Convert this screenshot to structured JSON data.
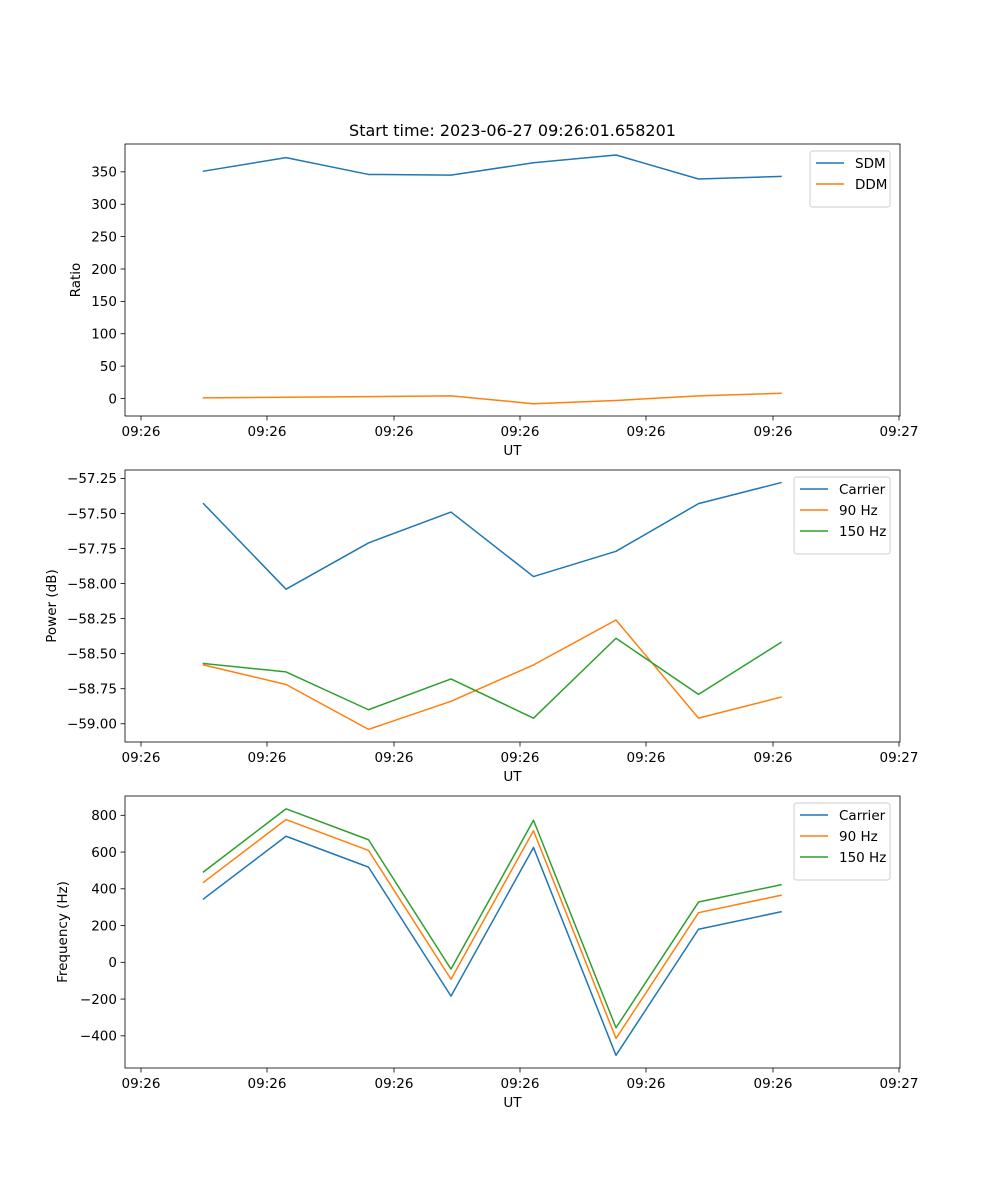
{
  "chart_data": [
    {
      "type": "line",
      "title": "Start time: 2023-06-27 09:26:01.658201",
      "xlabel": "UT",
      "ylabel": "Ratio",
      "xticks": [
        "09:26",
        "09:26",
        "09:26",
        "09:26",
        "09:26",
        "09:26",
        "09:27"
      ],
      "yticks": [
        0,
        50,
        100,
        150,
        200,
        250,
        300,
        350
      ],
      "ylim": [
        -27,
        393
      ],
      "legend": "top-right",
      "grid": false,
      "series": [
        {
          "name": "SDM",
          "color": "#1f77b4",
          "values": [
            351,
            372,
            346,
            345,
            364,
            376,
            339,
            343
          ]
        },
        {
          "name": "DDM",
          "color": "#ff7f0e",
          "values": [
            1,
            2,
            3,
            4,
            -8,
            -3,
            4,
            8
          ]
        }
      ]
    },
    {
      "type": "line",
      "title": "",
      "xlabel": "UT",
      "ylabel": "Power (dB)",
      "xticks": [
        "09:26",
        "09:26",
        "09:26",
        "09:26",
        "09:26",
        "09:26",
        "09:27"
      ],
      "yticks": [
        "−59.00",
        "−58.75",
        "−58.50",
        "−58.25",
        "−58.00",
        "−57.75",
        "−57.50",
        "−57.25"
      ],
      "ylim": [
        -59.13,
        -57.19
      ],
      "legend": "top-right",
      "grid": false,
      "series": [
        {
          "name": "Carrier",
          "color": "#1f77b4",
          "values": [
            -57.43,
            -58.04,
            -57.71,
            -57.49,
            -57.95,
            -57.77,
            -57.43,
            -57.28
          ]
        },
        {
          "name": "90 Hz",
          "color": "#ff7f0e",
          "values": [
            -58.58,
            -58.72,
            -59.04,
            -58.84,
            -58.58,
            -58.26,
            -58.96,
            -58.81
          ]
        },
        {
          "name": "150 Hz",
          "color": "#2ca02c",
          "values": [
            -58.57,
            -58.63,
            -58.9,
            -58.68,
            -58.96,
            -58.39,
            -58.79,
            -58.42
          ]
        }
      ]
    },
    {
      "type": "line",
      "title": "",
      "xlabel": "UT",
      "ylabel": "Frequency (Hz)",
      "xticks": [
        "09:26",
        "09:26",
        "09:26",
        "09:26",
        "09:26",
        "09:26",
        "09:27"
      ],
      "yticks": [
        "−400",
        "−200",
        "0",
        "200",
        "400",
        "600",
        "800"
      ],
      "ylim": [
        -575,
        905
      ],
      "legend": "top-right",
      "grid": false,
      "series": [
        {
          "name": "Carrier",
          "color": "#1f77b4",
          "values": [
            345,
            686,
            518,
            -184,
            625,
            -506,
            180,
            275
          ]
        },
        {
          "name": "90 Hz",
          "color": "#ff7f0e",
          "values": [
            435,
            777,
            609,
            -92,
            716,
            -414,
            270,
            365
          ]
        },
        {
          "name": "150 Hz",
          "color": "#2ca02c",
          "values": [
            492,
            835,
            667,
            -37,
            773,
            -356,
            328,
            422
          ]
        }
      ]
    }
  ]
}
